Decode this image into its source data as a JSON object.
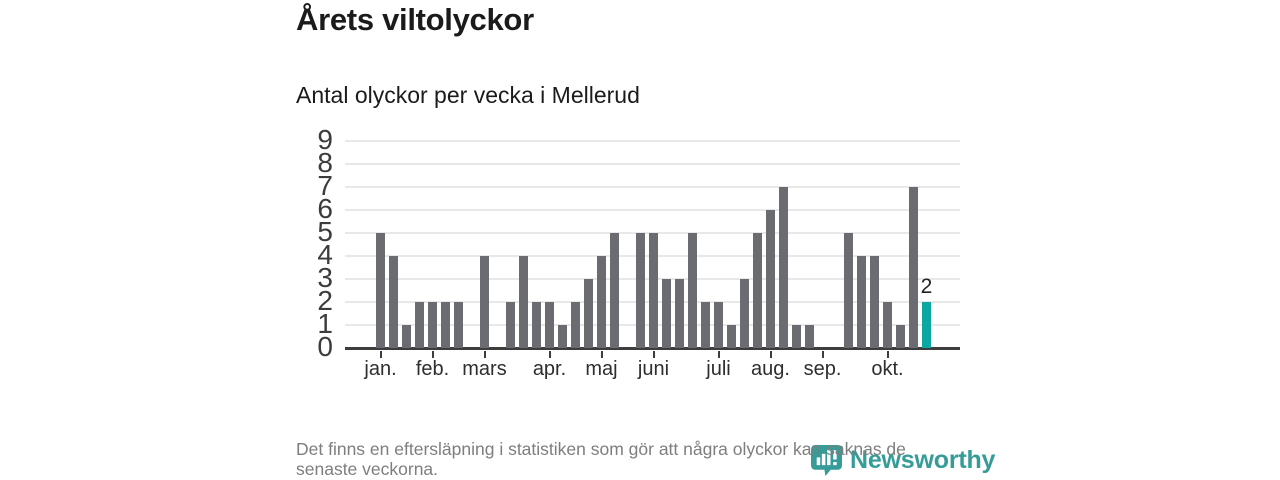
{
  "header": {
    "title": "Årets viltolyckor",
    "subtitle": "Antal olyckor per vecka i Mellerud"
  },
  "chart_data": {
    "type": "bar",
    "title": "Årets viltolyckor",
    "subtitle": "Antal olyckor per vecka i Mellerud",
    "x_unit": "vecka",
    "values": [
      5,
      4,
      1,
      2,
      2,
      2,
      2,
      0,
      4,
      0,
      2,
      4,
      2,
      2,
      1,
      2,
      3,
      4,
      5,
      0,
      5,
      5,
      3,
      3,
      5,
      2,
      2,
      1,
      3,
      5,
      6,
      7,
      1,
      1,
      0,
      0,
      5,
      4,
      4,
      2,
      1,
      7,
      2
    ],
    "yticks": [
      0,
      1,
      2,
      3,
      4,
      5,
      6,
      7,
      8,
      9
    ],
    "ylim": [
      0,
      9
    ],
    "grid": true,
    "legend": "none",
    "month_ticks": [
      {
        "label": "jan.",
        "week": 1
      },
      {
        "label": "feb.",
        "week": 5
      },
      {
        "label": "mars",
        "week": 9
      },
      {
        "label": "apr.",
        "week": 14
      },
      {
        "label": "maj",
        "week": 18
      },
      {
        "label": "juni",
        "week": 22
      },
      {
        "label": "juli",
        "week": 27
      },
      {
        "label": "aug.",
        "week": 31
      },
      {
        "label": "sep.",
        "week": 35
      },
      {
        "label": "okt.",
        "week": 40
      }
    ],
    "bar_color": "#6b6b72",
    "highlight_last_bar": true,
    "highlight_color": "#0da7a1",
    "highlight_value_label": "2",
    "gridline_color": "#e8e8e8",
    "axis_color": "#3d3d3d"
  },
  "footer": {
    "note_lines": [
      "Det finns en eftersläpning i statistiken som gör att några olyckor kan saknas de",
      "senaste veckorna."
    ]
  },
  "logo": {
    "brand": "Newsworthy",
    "color": "#359c98"
  }
}
